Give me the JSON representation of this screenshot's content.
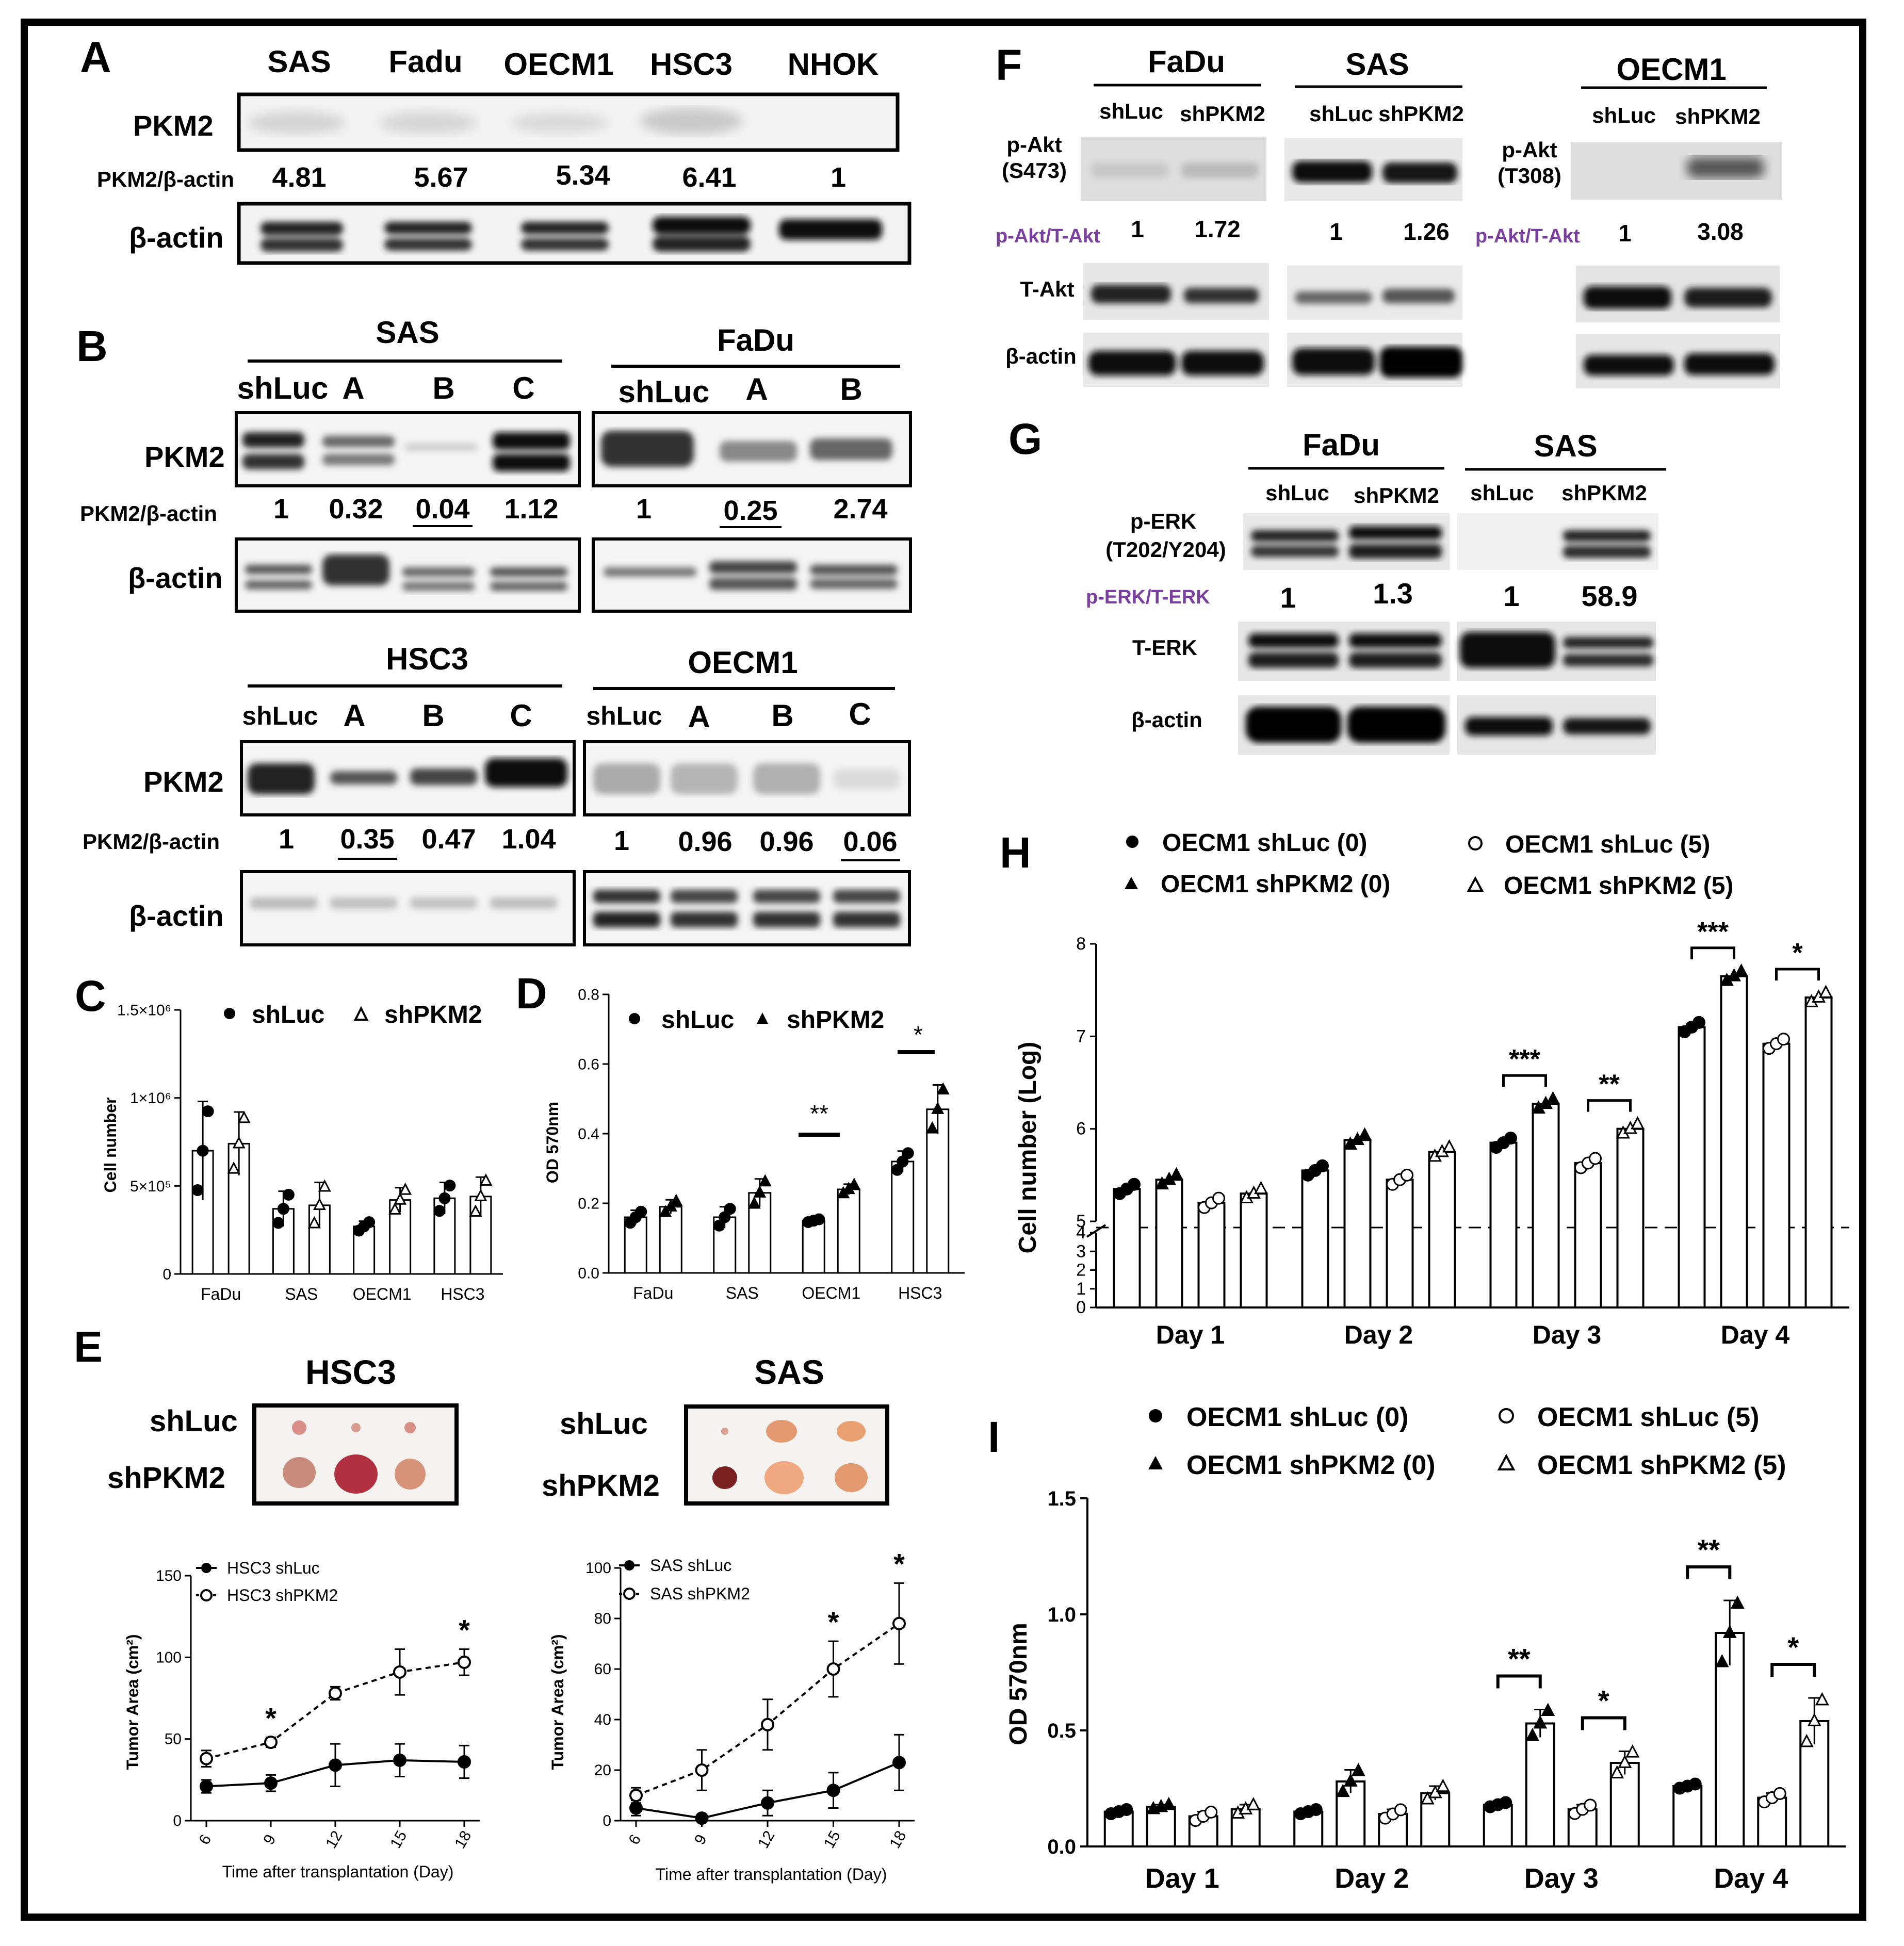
{
  "panelA": {
    "label": "A",
    "lanes": [
      "SAS",
      "Fadu",
      "OECM1",
      "HSC3",
      "NHOK"
    ],
    "row1": "PKM2",
    "ratio_label": "PKM2/β-actin",
    "ratios": [
      "4.81",
      "5.67",
      "5.34",
      "6.41",
      "1"
    ],
    "row2": "β-actin"
  },
  "panelB": {
    "label": "B",
    "groups": [
      {
        "title": "SAS",
        "lanes": [
          "shLuc",
          "A",
          "B",
          "C"
        ],
        "ratios": [
          "1",
          "0.32",
          "0.04",
          "1.12"
        ]
      },
      {
        "title": "FaDu",
        "lanes": [
          "shLuc",
          "A",
          "B"
        ],
        "ratios": [
          "1",
          "0.25",
          "2.74"
        ]
      },
      {
        "title": "HSC3",
        "lanes": [
          "shLuc",
          "A",
          "B",
          "C"
        ],
        "ratios": [
          "1",
          "0.35",
          "0.47",
          "1.04"
        ]
      },
      {
        "title": "OECM1",
        "lanes": [
          "shLuc",
          "A",
          "B",
          "C"
        ],
        "ratios": [
          "1",
          "0.96",
          "0.96",
          "0.06"
        ]
      }
    ],
    "row1": "PKM2",
    "ratio_label": "PKM2/β-actin",
    "row2": "β-actin"
  },
  "panelC": {
    "label": "C",
    "legend": [
      "shLuc",
      "shPKM2"
    ],
    "ylabel": "Cell number",
    "yticks": [
      "0",
      "5×10⁵",
      "1×10⁶",
      "1.5×10⁶"
    ]
  },
  "panelD": {
    "label": "D",
    "legend": [
      "shLuc",
      "shPKM2"
    ],
    "ylabel": "OD 570nm",
    "yticks": [
      "0.0",
      "0.2",
      "0.4",
      "0.6",
      "0.8"
    ],
    "stars": [
      "**",
      "*"
    ]
  },
  "panelE": {
    "label": "E",
    "left_title": "HSC3",
    "right_title": "SAS",
    "row1": "shLuc",
    "row2": "shPKM2",
    "left_legend": [
      "HSC3 shLuc",
      "HSC3 shPKM2"
    ],
    "right_legend": [
      "SAS shLuc",
      "SAS shPKM2"
    ],
    "ylabel": "Tumor Area (cm²)",
    "xlabel": "Time after transplantation (Day)",
    "left_yticks": [
      "0",
      "50",
      "100",
      "150"
    ],
    "right_yticks": [
      "0",
      "20",
      "40",
      "60",
      "80",
      "100"
    ],
    "xticks": [
      "6",
      "9",
      "12",
      "15",
      "18"
    ],
    "star": "*"
  },
  "panelF": {
    "label": "F",
    "groups": [
      {
        "title": "FaDu",
        "lanes": [
          "shLuc",
          "shPKM2"
        ],
        "ratios": [
          "1",
          "1.72"
        ]
      },
      {
        "title": "SAS",
        "lanes": [
          "shLuc",
          "shPKM2"
        ],
        "ratios": [
          "1",
          "1.26"
        ]
      },
      {
        "title": "OECM1",
        "lanes": [
          "shLuc",
          "shPKM2"
        ],
        "ratios": [
          "1",
          "3.08"
        ]
      }
    ],
    "row1_left": "p-Akt",
    "row1_left_sub": "(S473)",
    "row1_right": "p-Akt",
    "row1_right_sub": "(T308)",
    "ratio_label": "p-Akt/T-Akt",
    "row2": "T-Akt",
    "row3": "β-actin"
  },
  "panelG": {
    "label": "G",
    "groups": [
      {
        "title": "FaDu",
        "lanes": [
          "shLuc",
          "shPKM2"
        ],
        "ratios": [
          "1",
          "1.3"
        ]
      },
      {
        "title": "SAS",
        "lanes": [
          "shLuc",
          "shPKM2"
        ],
        "ratios": [
          "1",
          "58.9"
        ]
      }
    ],
    "row1": "p-ERK",
    "row1_sub": "(T202/Y204)",
    "ratio_label": "p-ERK/T-ERK",
    "row2": "T-ERK",
    "row3": "β-actin"
  },
  "panelH": {
    "label": "H",
    "legend": [
      "OECM1 shLuc (0)",
      "OECM1 shLuc (5)",
      "OECM1 shPKM2 (0)",
      "OECM1 shPKM2 (5)"
    ],
    "ylabel": "Cell number (Log)",
    "yticks_low": [
      "0",
      "1",
      "2",
      "3",
      "4",
      "5"
    ],
    "yticks_high": [
      "5",
      "6",
      "7",
      "8"
    ],
    "stars": [
      "***",
      "**",
      "***",
      "*"
    ]
  },
  "panelI": {
    "label": "I",
    "legend": [
      "OECM1 shLuc (0)",
      "OECM1 shLuc (5)",
      "OECM1 shPKM2 (0)",
      "OECM1 shPKM2 (5)"
    ],
    "ylabel": "OD 570nm",
    "yticks": [
      "0.0",
      "0.5",
      "1.0",
      "1.5"
    ],
    "stars": [
      "**",
      "*",
      "**",
      "*"
    ]
  },
  "chart_data": [
    {
      "panel": "C",
      "type": "bar",
      "categories": [
        "FaDu",
        "SAS",
        "OECM1",
        "HSC3"
      ],
      "ylabel": "Cell number",
      "ylim": [
        0,
        1500000
      ],
      "series": [
        {
          "name": "shLuc",
          "values": [
            700000,
            370000,
            270000,
            430000
          ],
          "err": [
            280000,
            100000,
            30000,
            90000
          ]
        },
        {
          "name": "shPKM2",
          "values": [
            740000,
            390000,
            420000,
            440000
          ],
          "err": [
            180000,
            130000,
            70000,
            110000
          ]
        }
      ]
    },
    {
      "panel": "D",
      "type": "bar",
      "categories": [
        "FaDu",
        "SAS",
        "OECM1",
        "HSC3"
      ],
      "ylabel": "OD 570nm",
      "ylim": [
        0,
        0.8
      ],
      "series": [
        {
          "name": "shLuc",
          "values": [
            0.16,
            0.16,
            0.15,
            0.32
          ],
          "err": [
            0.02,
            0.03,
            0.005,
            0.03
          ]
        },
        {
          "name": "shPKM2",
          "values": [
            0.19,
            0.23,
            0.24,
            0.47
          ],
          "err": [
            0.02,
            0.04,
            0.015,
            0.07
          ]
        }
      ]
    },
    {
      "panel": "E-left",
      "type": "line",
      "x": [
        6,
        9,
        12,
        15,
        18
      ],
      "xlabel": "Time after transplantation (Day)",
      "ylabel": "Tumor Area (cm²)",
      "ylim": [
        0,
        150
      ],
      "series": [
        {
          "name": "HSC3 shLuc",
          "values": [
            21,
            23,
            34,
            37,
            36
          ],
          "err": [
            4,
            5,
            13,
            10,
            10
          ],
          "style": "solid-filled"
        },
        {
          "name": "HSC3 shPKM2",
          "values": [
            38,
            48,
            78,
            91,
            97
          ],
          "err": [
            5,
            3,
            4,
            14,
            8
          ],
          "style": "dashed-open"
        }
      ]
    },
    {
      "panel": "E-right",
      "type": "line",
      "x": [
        6,
        9,
        12,
        15,
        18
      ],
      "xlabel": "Time after transplantation (Day)",
      "ylabel": "Tumor Area (cm²)",
      "ylim": [
        0,
        100
      ],
      "series": [
        {
          "name": "SAS shLuc",
          "values": [
            5,
            1,
            7,
            12,
            23
          ],
          "err": [
            3,
            1,
            5,
            7,
            11
          ],
          "style": "solid-filled"
        },
        {
          "name": "SAS shPKM2",
          "values": [
            10,
            20,
            38,
            60,
            78
          ],
          "err": [
            3,
            8,
            10,
            11,
            16
          ],
          "style": "dashed-open"
        }
      ]
    },
    {
      "panel": "H",
      "type": "bar",
      "categories": [
        "Day 1",
        "Day 2",
        "Day 3",
        "Day 4"
      ],
      "ylabel": "Cell number (Log)",
      "ylim": [
        0,
        8
      ],
      "axis_break": [
        4,
        5
      ],
      "series": [
        {
          "name": "OECM1 shLuc (0)",
          "values": [
            5.35,
            5.55,
            5.85,
            7.1
          ]
        },
        {
          "name": "OECM1 shPKM2 (0)",
          "values": [
            5.45,
            5.88,
            6.27,
            7.65
          ]
        },
        {
          "name": "OECM1 shLuc (5)",
          "values": [
            5.2,
            5.45,
            5.63,
            6.92
          ]
        },
        {
          "name": "OECM1 shPKM2 (5)",
          "values": [
            5.3,
            5.75,
            6.0,
            7.42
          ]
        }
      ]
    },
    {
      "panel": "I",
      "type": "bar",
      "categories": [
        "Day 1",
        "Day 2",
        "Day 3",
        "Day 4"
      ],
      "ylabel": "OD 570nm",
      "ylim": [
        0,
        1.5
      ],
      "series": [
        {
          "name": "OECM1 shLuc (0)",
          "values": [
            0.15,
            0.15,
            0.18,
            0.26
          ],
          "err": [
            0.01,
            0.01,
            0.01,
            0.01
          ]
        },
        {
          "name": "OECM1 shPKM2 (0)",
          "values": [
            0.17,
            0.28,
            0.53,
            0.92
          ],
          "err": [
            0.01,
            0.05,
            0.06,
            0.14
          ]
        },
        {
          "name": "OECM1 shLuc (5)",
          "values": [
            0.13,
            0.14,
            0.16,
            0.21
          ],
          "err": [
            0.02,
            0.02,
            0.02,
            0.02
          ]
        },
        {
          "name": "OECM1 shPKM2 (5)",
          "values": [
            0.16,
            0.23,
            0.36,
            0.54
          ],
          "err": [
            0.02,
            0.03,
            0.05,
            0.1
          ]
        }
      ]
    }
  ]
}
